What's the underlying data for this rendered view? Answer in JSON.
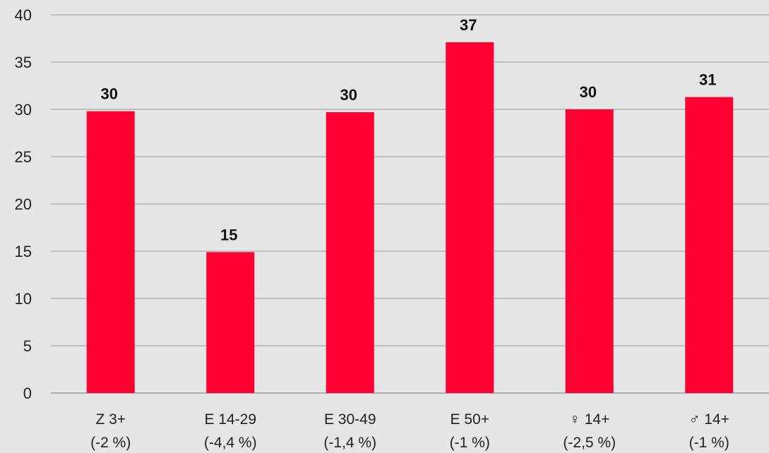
{
  "chart_data": {
    "type": "bar",
    "title": "",
    "xlabel": "",
    "ylabel": "",
    "ylim": [
      0,
      40
    ],
    "y_ticks": [
      "0",
      "5",
      "10",
      "15",
      "20",
      "25",
      "30",
      "35",
      "40"
    ],
    "grid": true,
    "categories": [
      {
        "name": "Z 3+",
        "sub": "(-2 %)"
      },
      {
        "name": "E 14-29",
        "sub": "(-4,4 %)"
      },
      {
        "name": "E 30-49",
        "sub": "(-1,4 %)"
      },
      {
        "name": "E 50+",
        "sub": "(-1 %)"
      },
      {
        "name": "♀ 14+",
        "sub": "(-2,5 %)"
      },
      {
        "name": "♂ 14+",
        "sub": "(-1 %)"
      }
    ],
    "values": [
      29.8,
      14.9,
      29.7,
      37.1,
      30.0,
      31.3
    ],
    "data_labels": [
      "30",
      "15",
      "30",
      "37",
      "30",
      "31"
    ],
    "bar_color": "#ff0033",
    "background_color": "#e5e5e5"
  }
}
